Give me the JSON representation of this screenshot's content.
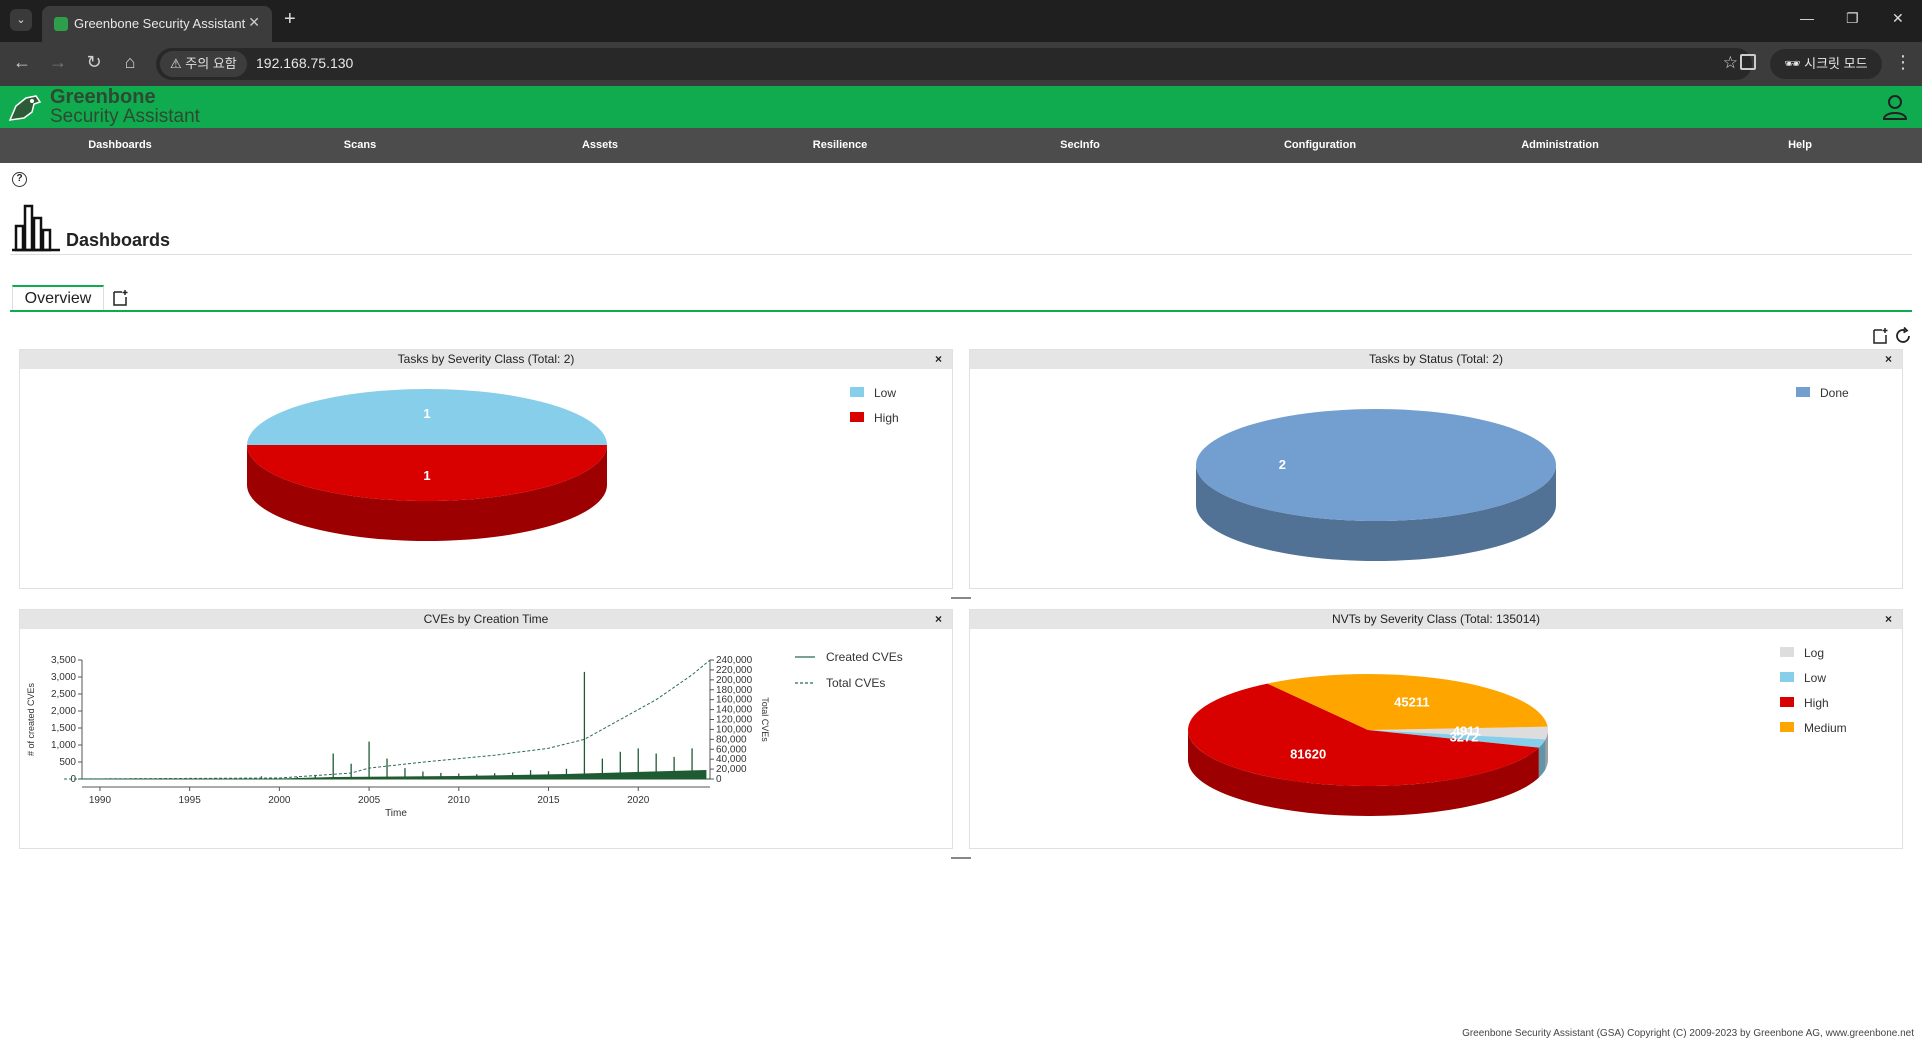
{
  "browser": {
    "tab_title": "Greenbone Security Assistant",
    "security_warning": "주의 요함",
    "url": "192.168.75.130",
    "incognito_label": "시크릿 모드"
  },
  "header": {
    "logo_line1": "Greenbone",
    "logo_line2": "Security Assistant"
  },
  "menu": [
    {
      "label": "Dashboards"
    },
    {
      "label": "Scans"
    },
    {
      "label": "Assets"
    },
    {
      "label": "Resilience"
    },
    {
      "label": "SecInfo"
    },
    {
      "label": "Configuration"
    },
    {
      "label": "Administration"
    },
    {
      "label": "Help"
    }
  ],
  "page": {
    "title": "Dashboards",
    "tab_overview": "Overview"
  },
  "panels": {
    "tasks_severity": {
      "title": "Tasks by Severity Class (Total: 2)",
      "close": "×",
      "chart_data": {
        "type": "pie",
        "labels": [
          "Low",
          "High"
        ],
        "values": [
          1,
          1
        ],
        "colors": [
          "#87ceeb",
          "#d90000"
        ]
      },
      "legend": [
        "Low",
        "High"
      ]
    },
    "tasks_status": {
      "title": "Tasks by Status (Total: 2)",
      "close": "×",
      "chart_data": {
        "type": "pie",
        "labels": [
          "Done"
        ],
        "values": [
          2
        ],
        "colors": [
          "#729fcf"
        ]
      },
      "legend": [
        "Done"
      ]
    },
    "cves_time": {
      "title": "CVEs by Creation Time",
      "close": "×",
      "chart_data": {
        "type": "line",
        "xlabel": "Time",
        "ylabel": "# of created CVEs",
        "y2label": "Total CVEs",
        "x_ticks": [
          "1990",
          "1995",
          "2000",
          "2005",
          "2010",
          "2015",
          "2020"
        ],
        "y_ticks": [
          "0",
          "500",
          "1,000",
          "1,500",
          "2,000",
          "2,500",
          "3,000",
          "3,500"
        ],
        "y2_ticks": [
          "0",
          "20,000",
          "40,000",
          "60,000",
          "80,000",
          "100,000",
          "120,000",
          "140,000",
          "160,000",
          "180,000",
          "200,000",
          "220,000",
          "240,000"
        ],
        "ylim": [
          0,
          3500
        ],
        "y2lim": [
          0,
          240000
        ],
        "xlim": [
          1989,
          2024
        ],
        "series": [
          {
            "name": "Created CVEs",
            "points": [
              [
                1999,
                80
              ],
              [
                2001,
                60
              ],
              [
                2002,
                120
              ],
              [
                2003,
                750
              ],
              [
                2004,
                450
              ],
              [
                2005,
                1100
              ],
              [
                2006,
                600
              ],
              [
                2007,
                320
              ],
              [
                2008,
                220
              ],
              [
                2009,
                180
              ],
              [
                2010,
                160
              ],
              [
                2011,
                140
              ],
              [
                2012,
                170
              ],
              [
                2013,
                190
              ],
              [
                2014,
                260
              ],
              [
                2015,
                230
              ],
              [
                2016,
                300
              ],
              [
                2017,
                3150
              ],
              [
                2018,
                600
              ],
              [
                2019,
                800
              ],
              [
                2020,
                900
              ],
              [
                2021,
                750
              ],
              [
                2022,
                650
              ],
              [
                2023,
                900
              ]
            ]
          },
          {
            "name": "Total CVEs",
            "points": [
              [
                1988,
                0
              ],
              [
                2000,
                2000
              ],
              [
                2004,
                12000
              ],
              [
                2005,
                22000
              ],
              [
                2008,
                34000
              ],
              [
                2012,
                48000
              ],
              [
                2015,
                62000
              ],
              [
                2017,
                80000
              ],
              [
                2019,
                120000
              ],
              [
                2021,
                160000
              ],
              [
                2023,
                210000
              ],
              [
                2024,
                240000
              ]
            ]
          }
        ]
      }
    },
    "nvts_severity": {
      "title": "NVTs by Severity Class (Total: 135014)",
      "close": "×",
      "chart_data": {
        "type": "pie",
        "labels": [
          "Log",
          "Low",
          "High",
          "Medium"
        ],
        "values": [
          4911,
          3272,
          81620,
          45211
        ],
        "colors": [
          "#dddddd",
          "#87ceeb",
          "#d90000",
          "#ffa500"
        ]
      },
      "legend": [
        "Log",
        "Low",
        "High",
        "Medium"
      ]
    }
  },
  "footer": "Greenbone Security Assistant (GSA) Copyright (C) 2009-2023 by Greenbone AG, www.greenbone.net"
}
